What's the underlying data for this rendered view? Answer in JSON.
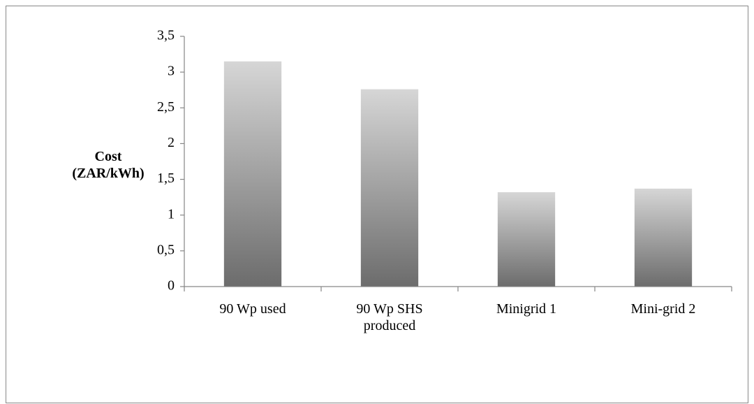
{
  "chart_data": {
    "type": "bar",
    "y_label": "Cost (ZAR/kWh)",
    "categories": [
      "90 Wp used",
      "90 Wp SHS produced",
      "Minigrid 1",
      "Mini-grid 2"
    ],
    "values": [
      3.15,
      2.76,
      1.32,
      1.37
    ],
    "gradient": [
      "#d6d6d6",
      "#6c6c6c"
    ],
    "ylim": [
      0,
      3.5
    ],
    "yticks": [
      0,
      {
        "value": 0.5,
        "label": "0,5"
      },
      1,
      {
        "value": 1.5,
        "label": "1,5"
      },
      2,
      {
        "value": 2.5,
        "label": "2,5"
      },
      3,
      {
        "value": 3.5,
        "label": "3,5"
      }
    ],
    "grid": false
  }
}
